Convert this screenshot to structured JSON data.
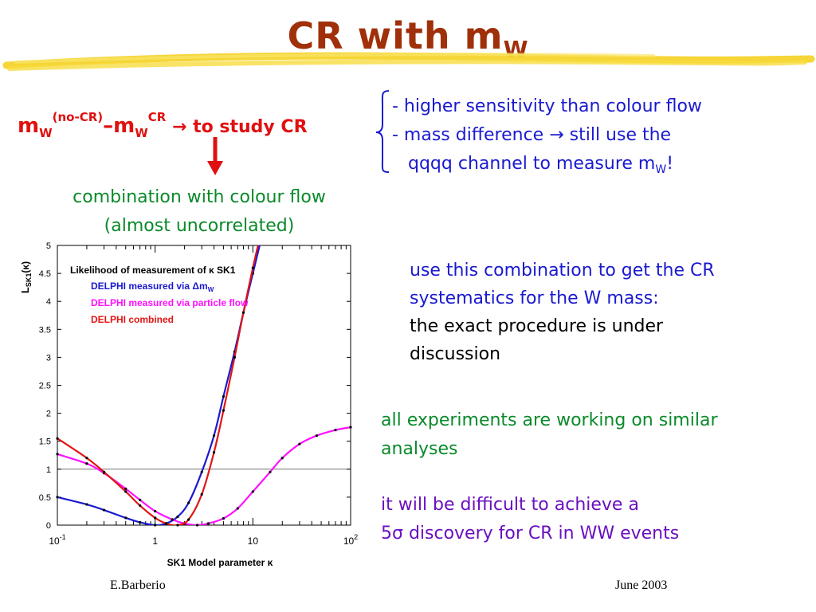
{
  "slide": {
    "title_main": "CR with m",
    "title_sub": "W",
    "formula": {
      "m1": "m",
      "w1": "W",
      "sup1": "(no-CR)",
      "dash": "–",
      "m2": "m",
      "w2": "W",
      "sup2": "CR",
      "arrow": "→",
      "rest": "to study CR"
    },
    "combination": [
      "combination with colour flow",
      "(almost uncorrelated)"
    ],
    "bullets": {
      "line1": "- higher sensitivity than colour flow",
      "line2_a": "- mass difference ",
      "line2_arrow": "→",
      "line2_b": " still use the",
      "line3_a": "qqqq channel to measure m",
      "line3_sub": "W",
      "line3_b": "!"
    },
    "use_combination": {
      "line1": "use this combination to get the CR",
      "line2": "systematics for the W mass:",
      "line3": "the exact procedure is under",
      "line4": "discussion"
    },
    "all_experiments": {
      "line1": "all experiments are working on similar",
      "line2": "analyses"
    },
    "difficult": {
      "line1": "it will be difficult to achieve a",
      "line2_a": "5",
      "line2_sigma": "σ",
      "line2_b": " discovery for CR in WW events"
    },
    "footer": {
      "author": "E.Barberio",
      "date": "June 2003"
    }
  },
  "colors": {
    "title": "#a0300a",
    "red": "#e01010",
    "green": "#0a8a2a",
    "blue": "#1a1ad0",
    "purple": "#6a10c0",
    "magenta": "#ff10ff",
    "chart_red": "#e01515",
    "highlight": "#f5d020"
  },
  "chart_data": {
    "type": "line",
    "xscale": "log",
    "xlim": [
      0.1,
      100
    ],
    "ylim": [
      0,
      5
    ],
    "xlabel": "SK1 Model parameter κ",
    "ylabel_main": "L",
    "ylabel_sub": "SK1",
    "ylabel_tail": "(κ)",
    "x_ticks": [
      {
        "value": 0.1,
        "base": "10",
        "exp": "-1"
      },
      {
        "value": 1,
        "base": "1",
        "exp": ""
      },
      {
        "value": 10,
        "base": "10",
        "exp": ""
      },
      {
        "value": 100,
        "base": "10",
        "exp": "2"
      }
    ],
    "y_ticks": [
      "0",
      "0.5",
      "1",
      "1.5",
      "2",
      "2.5",
      "3",
      "3.5",
      "4",
      "4.5",
      "5"
    ],
    "reference_line": 1,
    "legend": {
      "title": "Likelihood of measurement of κ SK1",
      "entries": [
        {
          "label": "DELPHI measured via Δm",
          "sub": "W"
        },
        {
          "label": "DELPHI measured via particle flow",
          "sub": ""
        },
        {
          "label": "DELPHI combined",
          "sub": ""
        }
      ]
    },
    "series": [
      {
        "name": "DELPHI measured via Δm",
        "color": "#1a1ad0",
        "x": [
          0.1,
          0.2,
          0.3,
          0.5,
          0.7,
          1.0,
          1.3,
          1.7,
          2.2,
          3.0,
          4.0,
          5.0,
          6.5,
          8.0,
          10.0,
          12.5
        ],
        "y": [
          0.5,
          0.37,
          0.27,
          0.13,
          0.05,
          0.0,
          0.03,
          0.15,
          0.4,
          0.95,
          1.6,
          2.3,
          3.1,
          3.8,
          4.5,
          5.2
        ]
      },
      {
        "name": "DELPHI measured via particle flow",
        "color": "#ff10ff",
        "x": [
          0.1,
          0.2,
          0.3,
          0.5,
          0.7,
          1.0,
          1.5,
          2.0,
          2.7,
          3.5,
          5.0,
          7.0,
          10.0,
          15.0,
          20.0,
          30.0,
          45.0,
          70.0,
          100.0
        ],
        "y": [
          1.27,
          1.1,
          0.93,
          0.65,
          0.45,
          0.25,
          0.1,
          0.03,
          0.0,
          0.03,
          0.12,
          0.3,
          0.6,
          0.95,
          1.2,
          1.45,
          1.6,
          1.7,
          1.75
        ]
      },
      {
        "name": "DELPHI combined",
        "color": "#e01515",
        "x": [
          0.1,
          0.2,
          0.3,
          0.5,
          0.7,
          1.0,
          1.3,
          1.7,
          2.2,
          3.0,
          4.0,
          5.0,
          6.5,
          8.0,
          10.0,
          12.0
        ],
        "y": [
          1.55,
          1.2,
          0.95,
          0.6,
          0.35,
          0.13,
          0.03,
          0.0,
          0.1,
          0.55,
          1.3,
          2.05,
          3.0,
          3.8,
          4.6,
          5.2
        ]
      }
    ]
  }
}
